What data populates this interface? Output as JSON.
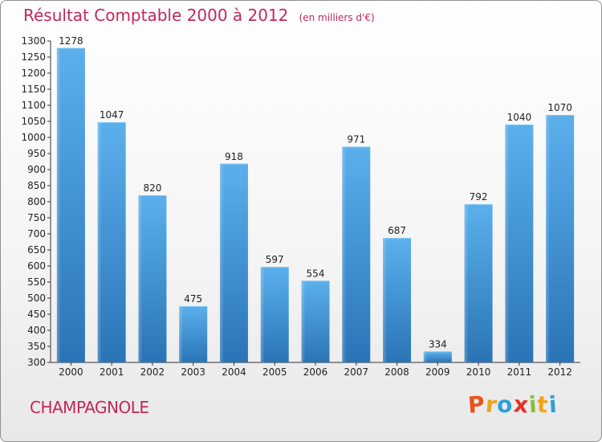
{
  "chart_data": {
    "type": "bar",
    "title": "Résultat Comptable 2000 à 2012",
    "subtitle": "(en milliers d'€)",
    "categories": [
      "2000",
      "2001",
      "2002",
      "2003",
      "2004",
      "2005",
      "2006",
      "2007",
      "2008",
      "2009",
      "2010",
      "2011",
      "2012"
    ],
    "values": [
      1278,
      1047,
      820,
      475,
      918,
      597,
      554,
      971,
      687,
      334,
      792,
      1040,
      1070
    ],
    "ylim": [
      300,
      1300
    ],
    "yticks": [
      300,
      350,
      400,
      450,
      500,
      550,
      600,
      650,
      700,
      750,
      800,
      850,
      900,
      950,
      1000,
      1050,
      1100,
      1150,
      1200,
      1250,
      1300
    ],
    "grid": false,
    "xlabel": "",
    "ylabel": "",
    "bar_color": "#3d8fd2"
  },
  "footer": {
    "commune": "CHAMPAGNOLE",
    "brand_letters": [
      "P",
      "r",
      "o",
      "x",
      "i",
      "t",
      "i"
    ],
    "brand_colors": [
      "#e9541a",
      "#f3a21b",
      "#2e9fd8",
      "#e4322b",
      "#8cbf3f",
      "#f3a21b",
      "#2e9fd8"
    ]
  }
}
